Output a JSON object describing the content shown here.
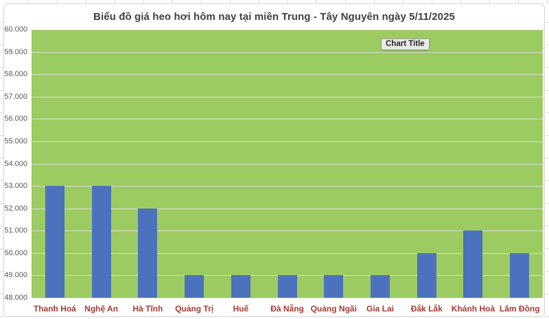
{
  "chart": {
    "title": "Biểu đồ giá heo hơi hôm nay tại miền Trung - Tây Nguyên ngày 5/11/2025"
  },
  "tooltip": {
    "label": "Chart Title"
  },
  "chart_data": {
    "type": "bar",
    "title": "Biểu đồ giá heo hơi hôm nay tại miền Trung - Tây Nguyên ngày 5/11/2025",
    "categories": [
      "Thanh Hoá",
      "Nghệ An",
      "Hà Tĩnh",
      "Quảng Trị",
      "Huế",
      "Đà Nẵng",
      "Quảng Ngãi",
      "Gia Lai",
      "Đắk Lắk",
      "Khánh Hoà",
      "Lâm Đồng"
    ],
    "values": [
      53000,
      53000,
      52000,
      49000,
      49000,
      49000,
      49000,
      49000,
      50000,
      51000,
      50000
    ],
    "y_tick_labels": [
      "60.000",
      "59.000",
      "58.000",
      "57.000",
      "56.000",
      "55.000",
      "54.000",
      "53.000",
      "52.000",
      "51.000",
      "50.000",
      "49.000",
      "48.000"
    ],
    "ylim": [
      48000,
      60000
    ],
    "y_step": 1000,
    "xlabel": "",
    "ylabel": "",
    "grid": true,
    "legend": "none",
    "colors": {
      "plot_background": "#9ccb62",
      "bar": "#4c72be",
      "gridline": "#dcdfd2",
      "x_label": "#a83b32",
      "y_label": "#595959",
      "title": "#3f3f3f",
      "tooltip_background": "#e9e9e9"
    }
  }
}
